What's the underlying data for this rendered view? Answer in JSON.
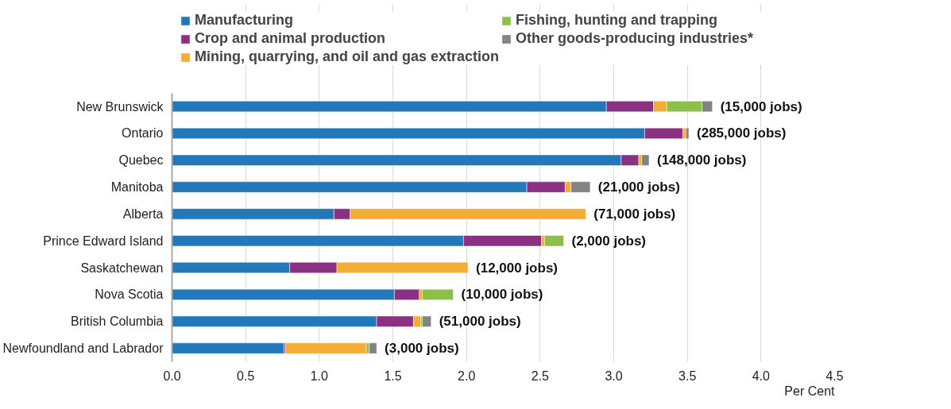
{
  "chart_data": {
    "type": "bar",
    "orientation": "horizontal",
    "stacked": true,
    "categories": [
      "New Brunswick",
      "Ontario",
      "Quebec",
      "Manitoba",
      "Alberta",
      "Prince Edward Island",
      "Saskatchewan",
      "Nova Scotia",
      "British Columbia",
      "Newfoundland and Labrador"
    ],
    "series": [
      {
        "name": "Manufacturing",
        "color": "#2278b8",
        "values": [
          2.95,
          3.21,
          3.05,
          2.41,
          1.1,
          1.98,
          0.8,
          1.51,
          1.39,
          0.76
        ]
      },
      {
        "name": "Crop and animal production",
        "color": "#8b3184",
        "values": [
          0.32,
          0.26,
          0.12,
          0.26,
          0.11,
          0.53,
          0.32,
          0.17,
          0.25,
          0.01
        ]
      },
      {
        "name": "Mining, quarrying, and oil and gas extraction",
        "color": "#f3ac36",
        "values": [
          0.09,
          0.02,
          0.02,
          0.04,
          1.6,
          0.02,
          0.89,
          0.02,
          0.05,
          0.55
        ]
      },
      {
        "name": "Fishing, hunting and trapping",
        "color": "#8bc14a",
        "values": [
          0.24,
          null,
          null,
          null,
          null,
          0.13,
          null,
          0.21,
          0.01,
          0.02
        ]
      },
      {
        "name": "Other goods-producing industries*",
        "color": "#838386",
        "values": [
          0.07,
          0.02,
          0.05,
          0.13,
          null,
          null,
          null,
          null,
          0.06,
          0.05
        ]
      }
    ],
    "annotations": [
      {
        "text": "(15,000 jobs)",
        "x": 3.67,
        "y": "New Brunswick"
      },
      {
        "text": "(285,000 jobs)",
        "x": 3.51,
        "y": "Ontario"
      },
      {
        "text": "(148,000 jobs)",
        "x": 3.24,
        "y": "Quebec"
      },
      {
        "text": "(21,000 jobs)",
        "x": 2.84,
        "y": "Manitoba"
      },
      {
        "text": "(71,000 jobs)",
        "x": 2.81,
        "y": "Alberta"
      },
      {
        "text": "(2,000 jobs)",
        "x": 2.66,
        "y": "Prince Edward Island"
      },
      {
        "text": "(12,000 jobs)",
        "x": 2.01,
        "y": "Saskatchewan"
      },
      {
        "text": "(10,000 jobs)",
        "x": 1.91,
        "y": "Nova Scotia"
      },
      {
        "text": "(51,000 jobs)",
        "x": 1.76,
        "y": "British Columbia"
      },
      {
        "text": "(3,000 jobs)",
        "x": 1.39,
        "y": "Newfoundland and Labrador"
      }
    ],
    "xlabel": "Per Cent",
    "xlim": [
      0,
      4.5
    ],
    "xticks": [
      {
        "value": 0,
        "label": "0.0"
      },
      0.5,
      {
        "value": 1,
        "label": "1.0"
      },
      1.5,
      {
        "value": 2,
        "label": "2.0"
      },
      2.5,
      {
        "value": 3,
        "label": "3.0"
      },
      3.5,
      {
        "value": 4,
        "label": "4.0"
      },
      4.5
    ],
    "grid": "x",
    "legend": "top"
  }
}
